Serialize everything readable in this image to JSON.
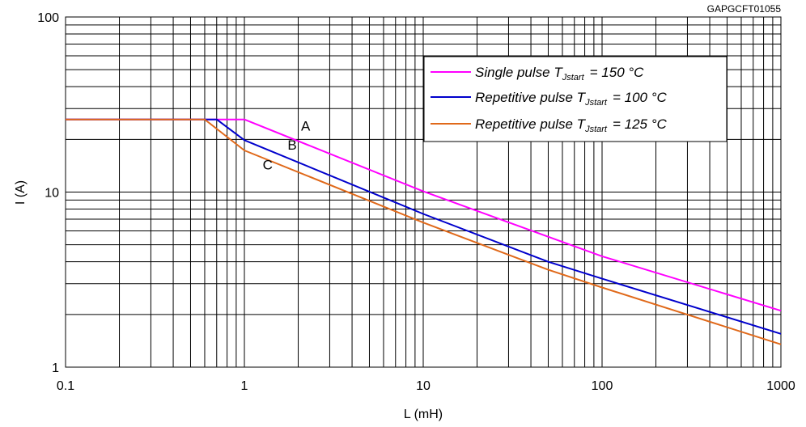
{
  "chart_data": {
    "type": "line",
    "figure_code": "GAPGCFT01055",
    "xlabel": "L (mH)",
    "ylabel": "I (A)",
    "x_scale": "log",
    "y_scale": "log",
    "xlim": [
      0.1,
      1000
    ],
    "ylim": [
      1,
      100
    ],
    "x_ticks": [
      0.1,
      1,
      10,
      100,
      1000
    ],
    "x_tick_labels": [
      "0.1",
      "1",
      "10",
      "100",
      "1000"
    ],
    "y_ticks": [
      1,
      10,
      100
    ],
    "y_tick_labels": [
      "1",
      "10",
      "100"
    ],
    "grid": true,
    "legend_placement": "top-right",
    "series": [
      {
        "label": "A",
        "color": "#ff00ff",
        "legend_main": "Single pulse T",
        "legend_sub": "Jstart",
        "legend_rest": "= 150 °C",
        "x": [
          0.1,
          1,
          10,
          100,
          1000
        ],
        "y": [
          26,
          26,
          10.1,
          4.3,
          2.1
        ]
      },
      {
        "label": "B",
        "color": "#0000cc",
        "legend_main": "Repetitive pulse T",
        "legend_sub": "Jstart",
        "legend_rest": "= 100 °C",
        "x": [
          0.1,
          0.7,
          1,
          10,
          50,
          100,
          1000
        ],
        "y": [
          26,
          26,
          19.8,
          7.5,
          4.0,
          3.2,
          1.55
        ]
      },
      {
        "label": "C",
        "color": "#e0691a",
        "legend_main": "Repetitive pulse T",
        "legend_sub": "Jstart",
        "legend_rest": "= 125 °C",
        "x": [
          0.1,
          0.6,
          1,
          10,
          50,
          100,
          1000
        ],
        "y": [
          26,
          26,
          17.3,
          6.7,
          3.6,
          2.85,
          1.35
        ]
      }
    ],
    "curve_labels": [
      {
        "text": "A",
        "x": 2.2,
        "y": 22.5
      },
      {
        "text": "B",
        "x": 1.85,
        "y": 17.5
      },
      {
        "text": "C",
        "x": 1.35,
        "y": 13.5
      }
    ]
  }
}
